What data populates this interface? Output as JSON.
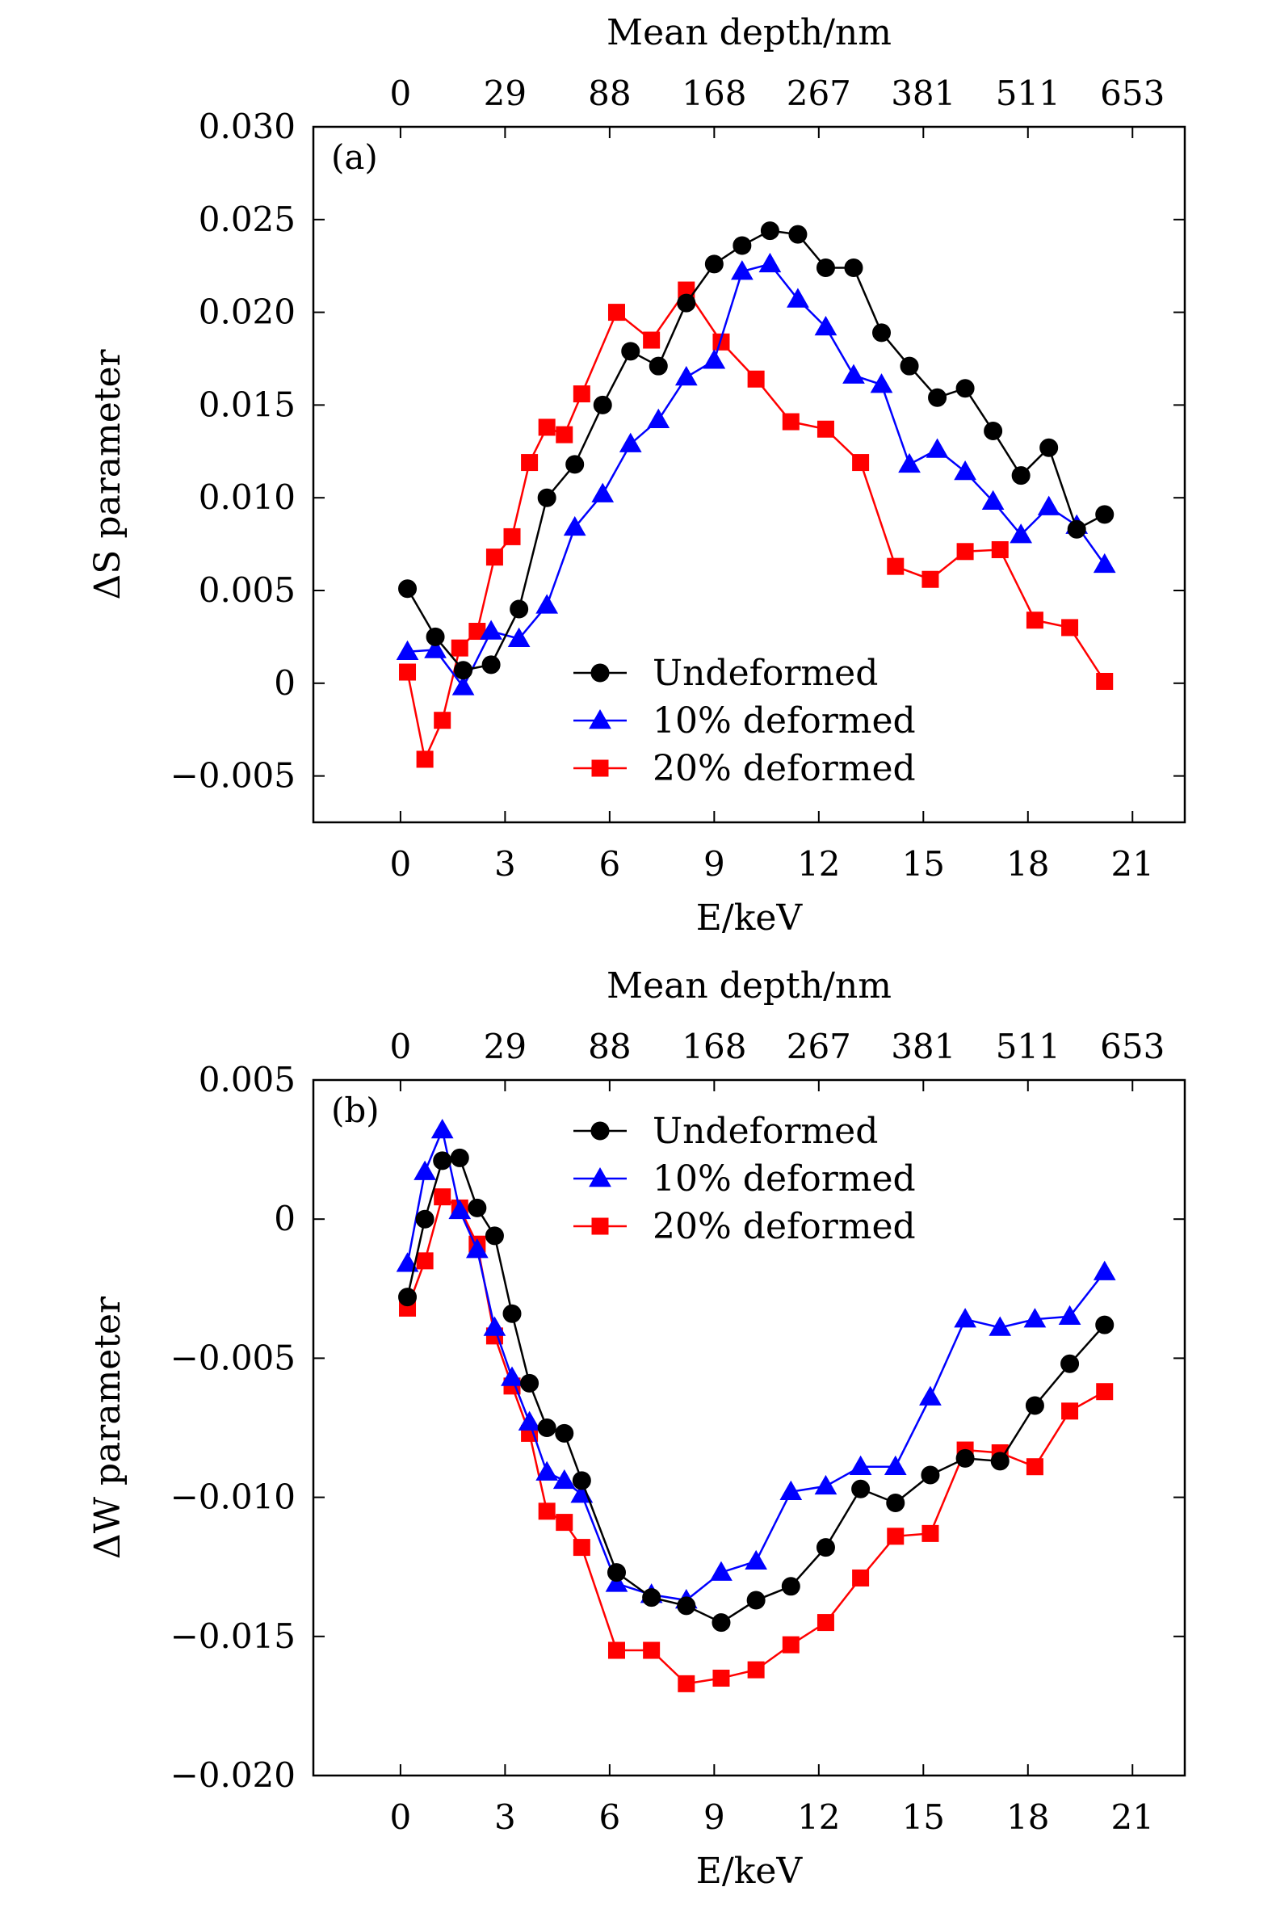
{
  "chart_data": [
    {
      "type": "line",
      "panel_label": "(a)",
      "xlabel": "E/keV",
      "ylabel": "ΔS parameter",
      "top_label": "Mean depth/nm",
      "xlim": [
        -2.5,
        22.5
      ],
      "ylim": [
        -0.0075,
        0.03
      ],
      "xticks": [
        0,
        3,
        6,
        9,
        12,
        15,
        18,
        21
      ],
      "xtick_labels": [
        "0",
        "3",
        "6",
        "9",
        "12",
        "15",
        "18",
        "21"
      ],
      "yticks": [
        -0.005,
        0,
        0.005,
        0.01,
        0.015,
        0.02,
        0.025,
        0.03
      ],
      "ytick_labels": [
        "−0.005",
        "0",
        "0.005",
        "0.010",
        "0.015",
        "0.020",
        "0.025",
        "0.030"
      ],
      "top_ticks": [
        0,
        3,
        6,
        9,
        12,
        15,
        18,
        21
      ],
      "top_tick_labels": [
        "0",
        "29",
        "88",
        "168",
        "267",
        "381",
        "511",
        "653"
      ],
      "legend_position": "lower-center",
      "series": [
        {
          "name": "Undeformed",
          "color": "#000000",
          "marker": "circle",
          "x": [
            0.2,
            1.0,
            1.8,
            2.6,
            3.4,
            4.2,
            5.0,
            5.8,
            6.6,
            7.4,
            8.2,
            9.0,
            9.8,
            10.6,
            11.4,
            12.2,
            13.0,
            13.8,
            14.6,
            15.4,
            16.2,
            17.0,
            17.8,
            18.6,
            19.4,
            20.2
          ],
          "y": [
            0.0051,
            0.0025,
            0.0007,
            0.001,
            0.004,
            0.01,
            0.0118,
            0.015,
            0.0179,
            0.0171,
            0.0205,
            0.0226,
            0.0236,
            0.0244,
            0.0242,
            0.0224,
            0.0224,
            0.0189,
            0.0171,
            0.0154,
            0.0159,
            0.0136,
            0.0112,
            0.0127,
            0.0083,
            0.0091
          ]
        },
        {
          "name": "10% deformed",
          "color": "#0000ff",
          "marker": "triangle",
          "x": [
            0.2,
            1.0,
            1.8,
            2.6,
            3.4,
            4.2,
            5.0,
            5.8,
            6.6,
            7.4,
            8.2,
            9.0,
            9.8,
            10.6,
            11.4,
            12.2,
            13.0,
            13.8,
            14.6,
            15.4,
            16.2,
            17.0,
            17.8,
            18.6,
            19.4,
            20.2
          ],
          "y": [
            0.0017,
            0.0018,
            -0.0002,
            0.0028,
            0.0024,
            0.0042,
            0.0084,
            0.0102,
            0.0129,
            0.0142,
            0.0165,
            0.0174,
            0.0222,
            0.0226,
            0.0207,
            0.0192,
            0.0166,
            0.0161,
            0.0118,
            0.0126,
            0.0114,
            0.0098,
            0.008,
            0.0095,
            0.0085,
            0.0064
          ]
        },
        {
          "name": "20% deformed",
          "color": "#ff0000",
          "marker": "square",
          "x": [
            0.2,
            0.7,
            1.2,
            1.7,
            2.2,
            2.7,
            3.2,
            3.7,
            4.2,
            4.7,
            5.2,
            6.2,
            7.2,
            8.2,
            9.2,
            10.2,
            11.2,
            12.2,
            13.2,
            14.2,
            15.2,
            16.2,
            17.2,
            18.2,
            19.2,
            20.2
          ],
          "y": [
            0.0006,
            -0.0041,
            -0.002,
            0.0019,
            0.0028,
            0.0068,
            0.0079,
            0.0119,
            0.0138,
            0.0134,
            0.0156,
            0.02,
            0.0185,
            0.0212,
            0.0184,
            0.0164,
            0.0141,
            0.0137,
            0.0119,
            0.0063,
            0.0056,
            0.0071,
            0.0072,
            0.0034,
            0.003,
            0.0001
          ]
        }
      ]
    },
    {
      "type": "line",
      "panel_label": "(b)",
      "xlabel": "E/keV",
      "ylabel": "ΔW parameter",
      "top_label": "Mean depth/nm",
      "xlim": [
        -2.5,
        22.5
      ],
      "ylim": [
        -0.02,
        0.005
      ],
      "xticks": [
        0,
        3,
        6,
        9,
        12,
        15,
        18,
        21
      ],
      "xtick_labels": [
        "0",
        "3",
        "6",
        "9",
        "12",
        "15",
        "18",
        "21"
      ],
      "yticks": [
        -0.02,
        -0.015,
        -0.01,
        -0.005,
        0,
        0.005
      ],
      "ytick_labels": [
        "−0.020",
        "−0.015",
        "−0.010",
        "−0.005",
        "0",
        "0.005"
      ],
      "top_ticks": [
        0,
        3,
        6,
        9,
        12,
        15,
        18,
        21
      ],
      "top_tick_labels": [
        "0",
        "29",
        "88",
        "168",
        "267",
        "381",
        "511",
        "653"
      ],
      "legend_position": "upper-center",
      "series": [
        {
          "name": "Undeformed",
          "color": "#000000",
          "marker": "circle",
          "x": [
            0.2,
            0.7,
            1.2,
            1.7,
            2.2,
            2.7,
            3.2,
            3.7,
            4.2,
            4.7,
            5.2,
            6.2,
            7.2,
            8.2,
            9.2,
            10.2,
            11.2,
            12.2,
            13.2,
            14.2,
            15.2,
            16.2,
            17.2,
            18.2,
            19.2,
            20.2
          ],
          "y": [
            -0.0028,
            0.0,
            0.0021,
            0.0022,
            0.0004,
            -0.0006,
            -0.0034,
            -0.0059,
            -0.0075,
            -0.0077,
            -0.0094,
            -0.0127,
            -0.0136,
            -0.0139,
            -0.0145,
            -0.0137,
            -0.0132,
            -0.0118,
            -0.0097,
            -0.0102,
            -0.0092,
            -0.0086,
            -0.0087,
            -0.0067,
            -0.0052,
            -0.0038
          ]
        },
        {
          "name": "10% deformed",
          "color": "#0000ff",
          "marker": "triangle",
          "x": [
            0.2,
            0.7,
            1.2,
            1.7,
            2.2,
            2.7,
            3.2,
            3.7,
            4.2,
            4.7,
            5.2,
            6.2,
            7.2,
            8.2,
            9.2,
            10.2,
            11.2,
            12.2,
            13.2,
            14.2,
            15.2,
            16.2,
            17.2,
            18.2,
            19.2,
            20.2
          ],
          "y": [
            -0.0016,
            0.0017,
            0.0032,
            0.0003,
            -0.0011,
            -0.0039,
            -0.0057,
            -0.0073,
            -0.0091,
            -0.0094,
            -0.0099,
            -0.0131,
            -0.0135,
            -0.0137,
            -0.0127,
            -0.0123,
            -0.0098,
            -0.0096,
            -0.0089,
            -0.0089,
            -0.0064,
            -0.0036,
            -0.0039,
            -0.0036,
            -0.0035,
            -0.0019
          ]
        },
        {
          "name": "20% deformed",
          "color": "#ff0000",
          "marker": "square",
          "x": [
            0.2,
            0.7,
            1.2,
            1.7,
            2.2,
            2.7,
            3.2,
            3.7,
            4.2,
            4.7,
            5.2,
            6.2,
            7.2,
            8.2,
            9.2,
            10.2,
            11.2,
            12.2,
            13.2,
            14.2,
            15.2,
            16.2,
            17.2,
            18.2,
            19.2,
            20.2
          ],
          "y": [
            -0.0032,
            -0.0015,
            0.0008,
            0.0004,
            -0.0009,
            -0.0042,
            -0.006,
            -0.0077,
            -0.0105,
            -0.0109,
            -0.0118,
            -0.0155,
            -0.0155,
            -0.0167,
            -0.0165,
            -0.0162,
            -0.0153,
            -0.0145,
            -0.0129,
            -0.0114,
            -0.0113,
            -0.0083,
            -0.0084,
            -0.0089,
            -0.0069,
            -0.0062
          ]
        }
      ]
    }
  ]
}
